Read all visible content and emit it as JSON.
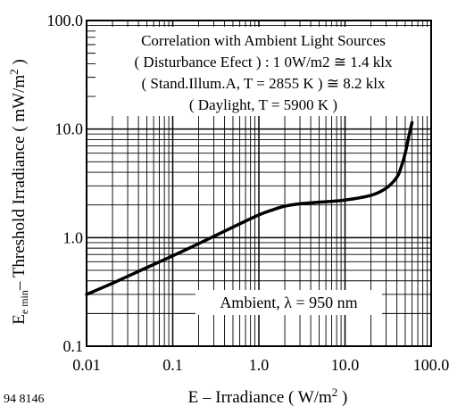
{
  "chart_data": {
    "type": "line",
    "title": "",
    "figure_id": "94 8146",
    "xlabel": {
      "main": "E – Irradiance ( W/m",
      "sup": "2",
      "tail": " )"
    },
    "ylabel": {
      "e": "E",
      "sub": "e min",
      "main": "– Threshold Irradiance ( mW/m",
      "sup": "2",
      "tail": " )"
    },
    "x_scale": "log",
    "y_scale": "log",
    "xlim": [
      0.01,
      100
    ],
    "ylim": [
      0.1,
      100
    ],
    "grid": true,
    "x_ticks": [
      {
        "value": 0.01,
        "label": "0.01"
      },
      {
        "value": 0.1,
        "label": "0.1"
      },
      {
        "value": 1,
        "label": "1.0"
      },
      {
        "value": 10,
        "label": "10.0"
      },
      {
        "value": 100,
        "label": "100.0"
      }
    ],
    "y_ticks": [
      {
        "value": 0.1,
        "label": "0.1"
      },
      {
        "value": 1,
        "label": "1.0"
      },
      {
        "value": 10,
        "label": "10.0"
      },
      {
        "value": 100,
        "label": "100.0"
      }
    ],
    "annotations": {
      "box": [
        "Correlation with Ambient Light Sources",
        "( Disturbance Efect ) : 1 0W/m2 ≅ 1.4 klx",
        "( Stand.Illum.A, T = 2855 K ) ≅ 8.2 klx",
        "( Daylight, T = 5900 K )"
      ],
      "curve_label": "Ambient, λ = 950 nm"
    },
    "series": [
      {
        "x": [
          0.01,
          0.02,
          0.05,
          0.1,
          0.2,
          0.5,
          1,
          1.5,
          2,
          3,
          5,
          10,
          20,
          30,
          40,
          45,
          50,
          55,
          60
        ],
        "y": [
          0.3,
          0.38,
          0.53,
          0.68,
          0.88,
          1.25,
          1.62,
          1.82,
          1.95,
          2.05,
          2.12,
          2.22,
          2.45,
          2.85,
          3.6,
          4.5,
          6.0,
          8.5,
          11.5
        ]
      }
    ]
  }
}
